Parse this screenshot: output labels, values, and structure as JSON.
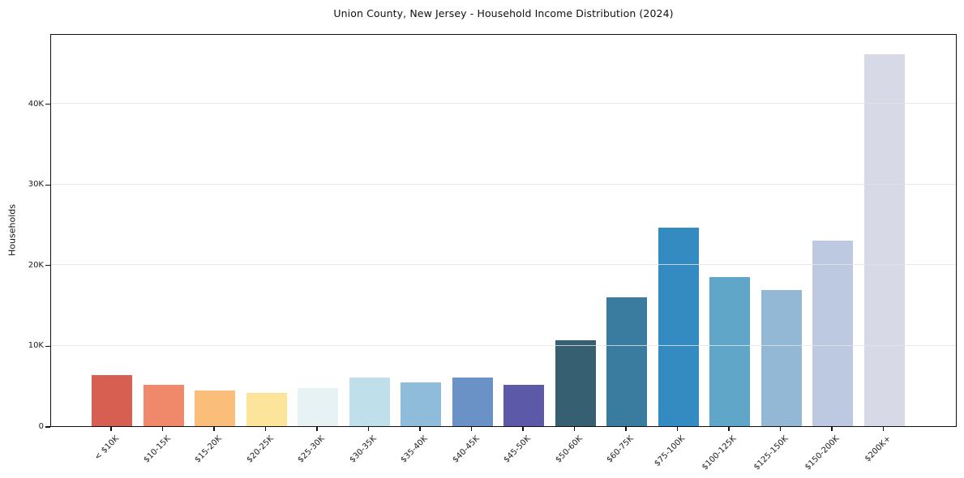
{
  "chart_data": {
    "type": "bar",
    "title": "Union County, New Jersey - Household Income Distribution (2024)",
    "xlabel": "",
    "ylabel": "Households",
    "categories": [
      "< $10K",
      "$10-15K",
      "$15-20K",
      "$20-25K",
      "$25-30K",
      "$30-35K",
      "$35-40K",
      "$40-45K",
      "$45-50K",
      "$50-60K",
      "$60-75K",
      "$75-100K",
      "$100-125K",
      "$125-150K",
      "$150-200K",
      "$200K+"
    ],
    "values": [
      6300,
      5100,
      4400,
      4100,
      4700,
      6000,
      5400,
      6000,
      5100,
      10600,
      16000,
      24600,
      18500,
      16900,
      23000,
      46100
    ],
    "bar_colors": [
      "#d65f51",
      "#f0896a",
      "#fbbd7a",
      "#fce49a",
      "#e7f2f5",
      "#bfdfea",
      "#8fbcdb",
      "#6b92c6",
      "#5c59a8",
      "#375f72",
      "#3a7ba0",
      "#348bc1",
      "#60a6c9",
      "#92b8d6",
      "#bdc9e0",
      "#d7dae6"
    ],
    "ylim": [
      0,
      48700
    ],
    "ytick_values": [
      0,
      10000,
      20000,
      30000,
      40000
    ],
    "ytick_labels": [
      "0",
      "10K",
      "20K",
      "30K",
      "40K"
    ],
    "grid": "horizontal-y-only",
    "grid_over_bars": true,
    "x_tick_rotation": 45,
    "legend": "none",
    "colors": {
      "background": "#ffffff",
      "axis": "#101010",
      "grid": "#e4e4e4",
      "text": "#1c1c1c"
    }
  }
}
